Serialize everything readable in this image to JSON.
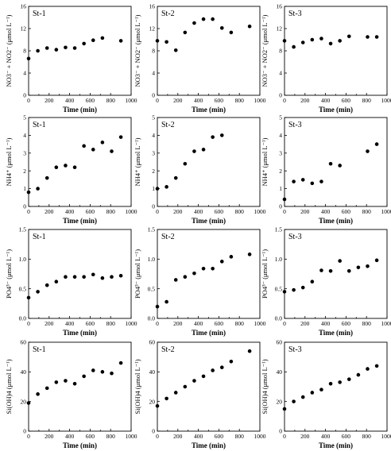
{
  "chart_data": [
    {
      "type": "scatter",
      "panel_label": "St-1",
      "ylabel": "NO3⁻ + NO2⁻ (μmol L⁻¹)",
      "xlabel": "Time (min)",
      "xlim": [
        0,
        1000
      ],
      "ylim": [
        0,
        16
      ],
      "xticks": [
        0,
        200,
        400,
        600,
        800,
        1000
      ],
      "yticks": [
        0,
        4,
        8,
        12,
        16
      ],
      "x": [
        0,
        90,
        180,
        270,
        360,
        450,
        540,
        630,
        720,
        900
      ],
      "y": [
        6.6,
        8.0,
        8.5,
        8.2,
        8.6,
        8.5,
        9.3,
        9.9,
        10.3,
        9.8
      ]
    },
    {
      "type": "scatter",
      "panel_label": "St-2",
      "ylabel": "NO3⁻ + NO2⁻ (μmol L⁻¹)",
      "xlabel": "Time (min)",
      "xlim": [
        0,
        1000
      ],
      "ylim": [
        0,
        16
      ],
      "xticks": [
        0,
        200,
        400,
        600,
        800,
        1000
      ],
      "yticks": [
        0,
        4,
        8,
        12,
        16
      ],
      "x": [
        0,
        90,
        180,
        270,
        360,
        450,
        540,
        630,
        720,
        900
      ],
      "y": [
        9.8,
        9.6,
        8.1,
        11.3,
        13.0,
        13.7,
        13.7,
        12.1,
        11.3,
        12.4
      ]
    },
    {
      "type": "scatter",
      "panel_label": "St-3",
      "ylabel": "NO3⁻ + NO2⁻ (μmol L⁻¹)",
      "xlabel": "Time (min)",
      "xlim": [
        0,
        1000
      ],
      "ylim": [
        0,
        16
      ],
      "xticks": [
        0,
        200,
        400,
        600,
        800,
        1000
      ],
      "yticks": [
        0,
        4,
        8,
        12,
        16
      ],
      "x": [
        0,
        90,
        180,
        270,
        360,
        450,
        540,
        630,
        810,
        900
      ],
      "y": [
        9.8,
        8.7,
        9.5,
        10.0,
        10.2,
        9.3,
        9.8,
        10.6,
        10.5,
        10.5
      ]
    },
    {
      "type": "scatter",
      "panel_label": "St-1",
      "ylabel": "NH4⁺ (μmol L⁻¹)",
      "xlabel": "Time (min)",
      "xlim": [
        0,
        1000
      ],
      "ylim": [
        0,
        5
      ],
      "xticks": [
        0,
        200,
        400,
        600,
        800,
        1000
      ],
      "yticks": [
        0,
        1,
        2,
        3,
        4,
        5
      ],
      "x": [
        0,
        90,
        180,
        270,
        360,
        450,
        540,
        630,
        720,
        810,
        900
      ],
      "y": [
        0.8,
        1.0,
        1.6,
        2.2,
        2.3,
        2.2,
        3.4,
        3.2,
        3.6,
        3.1,
        3.9
      ]
    },
    {
      "type": "scatter",
      "panel_label": "St-2",
      "ylabel": "NH4⁺ (μmol L⁻¹)",
      "xlabel": "Time (min)",
      "xlim": [
        0,
        1000
      ],
      "ylim": [
        0,
        5
      ],
      "xticks": [
        0,
        200,
        400,
        600,
        800,
        1000
      ],
      "yticks": [
        0,
        1,
        2,
        3,
        4,
        5
      ],
      "x": [
        0,
        90,
        180,
        270,
        360,
        450,
        540,
        630
      ],
      "y": [
        1.0,
        1.1,
        1.6,
        2.4,
        3.1,
        3.2,
        3.9,
        4.0
      ]
    },
    {
      "type": "scatter",
      "panel_label": "St-3",
      "ylabel": "NH4⁺ (μmol L⁻¹)",
      "xlabel": "Time (min)",
      "xlim": [
        0,
        1000
      ],
      "ylim": [
        0,
        5
      ],
      "xticks": [
        0,
        200,
        400,
        600,
        800,
        1000
      ],
      "yticks": [
        0,
        1,
        2,
        3,
        4,
        5
      ],
      "x": [
        0,
        90,
        180,
        270,
        360,
        450,
        540,
        810,
        900
      ],
      "y": [
        0.4,
        1.4,
        1.5,
        1.3,
        1.4,
        2.4,
        2.3,
        3.1,
        3.5
      ]
    },
    {
      "type": "scatter",
      "panel_label": "St-1",
      "ylabel": "PO4³⁻ (μmol L⁻¹)",
      "xlabel": "Time (min)",
      "xlim": [
        0,
        1000
      ],
      "ylim": [
        0,
        1.5
      ],
      "xticks": [
        0,
        200,
        400,
        600,
        800,
        1000
      ],
      "yticks": [
        0,
        0.5,
        1.0,
        1.5
      ],
      "x": [
        0,
        90,
        180,
        270,
        360,
        450,
        540,
        630,
        720,
        810,
        900
      ],
      "y": [
        0.35,
        0.45,
        0.56,
        0.62,
        0.7,
        0.7,
        0.7,
        0.74,
        0.68,
        0.7,
        0.72
      ]
    },
    {
      "type": "scatter",
      "panel_label": "St-2",
      "ylabel": "PO4³⁻ (μmol L⁻¹)",
      "xlabel": "Time (min)",
      "xlim": [
        0,
        1000
      ],
      "ylim": [
        0,
        1.5
      ],
      "xticks": [
        0,
        200,
        400,
        600,
        800,
        1000
      ],
      "yticks": [
        0,
        0.5,
        1.0,
        1.5
      ],
      "x": [
        0,
        90,
        180,
        270,
        360,
        450,
        540,
        630,
        720,
        900
      ],
      "y": [
        0.2,
        0.28,
        0.65,
        0.7,
        0.76,
        0.84,
        0.84,
        0.96,
        1.04,
        1.08
      ]
    },
    {
      "type": "scatter",
      "panel_label": "St-3",
      "ylabel": "PO4³⁻ (μmol L⁻¹)",
      "xlabel": "Time (min)",
      "xlim": [
        0,
        1000
      ],
      "ylim": [
        0,
        1.5
      ],
      "xticks": [
        0,
        200,
        400,
        600,
        800,
        1000
      ],
      "yticks": [
        0,
        0.5,
        1.0,
        1.5
      ],
      "x": [
        0,
        90,
        180,
        270,
        360,
        450,
        540,
        630,
        720,
        810,
        900
      ],
      "y": [
        0.45,
        0.48,
        0.52,
        0.62,
        0.81,
        0.8,
        0.97,
        0.8,
        0.86,
        0.88,
        0.98
      ]
    },
    {
      "type": "scatter",
      "panel_label": "St-1",
      "ylabel": "Si(OH)4 (μmol L⁻¹)",
      "xlabel": "Time (min)",
      "xlim": [
        0,
        1000
      ],
      "ylim": [
        0,
        60
      ],
      "xticks": [
        0,
        200,
        400,
        600,
        800,
        1000
      ],
      "yticks": [
        0,
        20,
        40,
        60
      ],
      "x": [
        0,
        90,
        180,
        270,
        360,
        450,
        540,
        630,
        720,
        810,
        900
      ],
      "y": [
        19,
        25,
        29,
        33,
        34,
        32,
        37,
        41,
        40,
        39,
        46
      ]
    },
    {
      "type": "scatter",
      "panel_label": "St-2",
      "ylabel": "Si(OH)4 (μmol L⁻¹)",
      "xlabel": "Time (min)",
      "xlim": [
        0,
        1000
      ],
      "ylim": [
        0,
        60
      ],
      "xticks": [
        0,
        200,
        400,
        600,
        800,
        1000
      ],
      "yticks": [
        0,
        20,
        40,
        60
      ],
      "x": [
        0,
        90,
        180,
        270,
        360,
        450,
        540,
        630,
        720,
        900
      ],
      "y": [
        17,
        22,
        26,
        30,
        34,
        37,
        41,
        43,
        47,
        54
      ]
    },
    {
      "type": "scatter",
      "panel_label": "St-3",
      "ylabel": "Si(OH)4 (μmol L⁻¹)",
      "xlabel": "Time (min)",
      "xlim": [
        0,
        1000
      ],
      "ylim": [
        0,
        60
      ],
      "xticks": [
        0,
        200,
        400,
        600,
        800,
        1000
      ],
      "yticks": [
        0,
        20,
        40,
        60
      ],
      "x": [
        0,
        90,
        180,
        270,
        360,
        450,
        540,
        630,
        720,
        810,
        900
      ],
      "y": [
        15,
        20,
        23,
        26,
        28,
        32,
        33,
        35,
        38,
        42,
        44
      ]
    }
  ]
}
